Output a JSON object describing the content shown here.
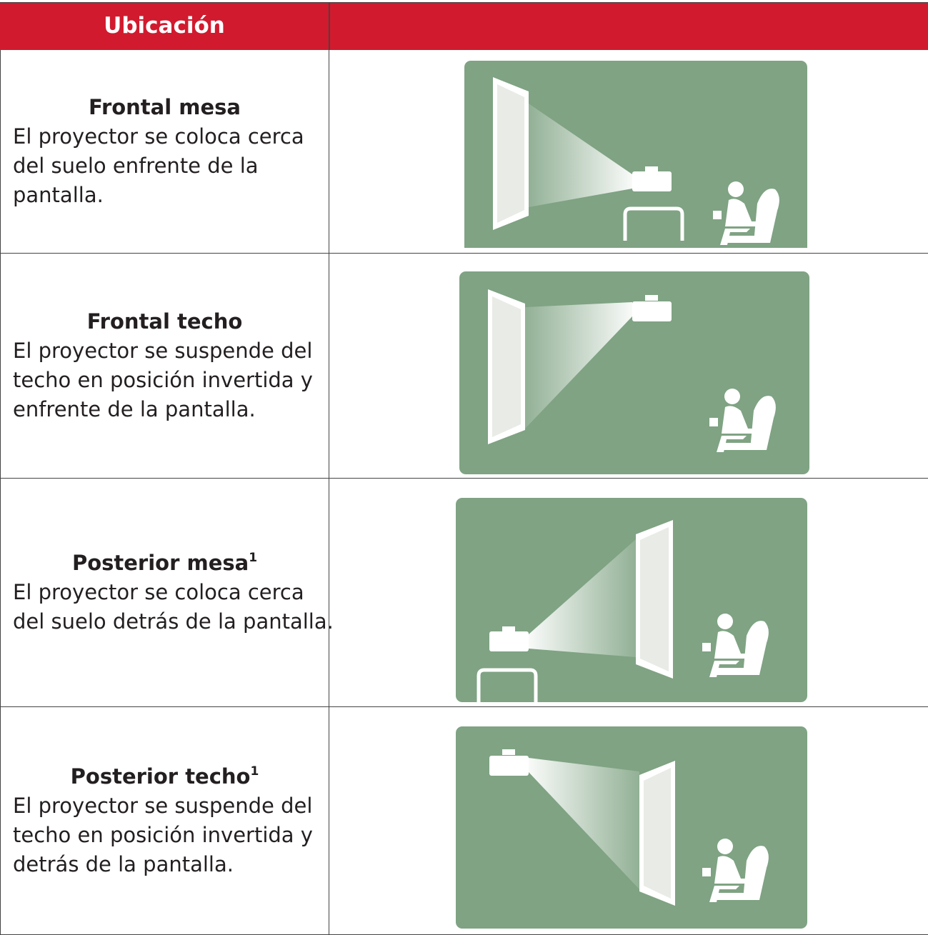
{
  "header": {
    "title": "Ubicación"
  },
  "rows": [
    {
      "title": "Frontal mesa",
      "description": [
        "El proyector se coloca cerca",
        "del suelo enfrente de la",
        "pantalla."
      ]
    },
    {
      "title": "Frontal techo",
      "description": [
        "El proyector se suspende del",
        "techo en posición invertida y",
        "enfrente de la pantalla."
      ]
    },
    {
      "title": "Posterior mesa",
      "superscript": "1",
      "description": [
        "El proyector se coloca cerca",
        "del suelo detrás de la pantalla."
      ]
    },
    {
      "title": "Posterior techo",
      "superscript": "1",
      "description": [
        "El proyector se suspende del",
        "techo en posición invertida y",
        "detrás de la pantalla."
      ]
    }
  ]
}
